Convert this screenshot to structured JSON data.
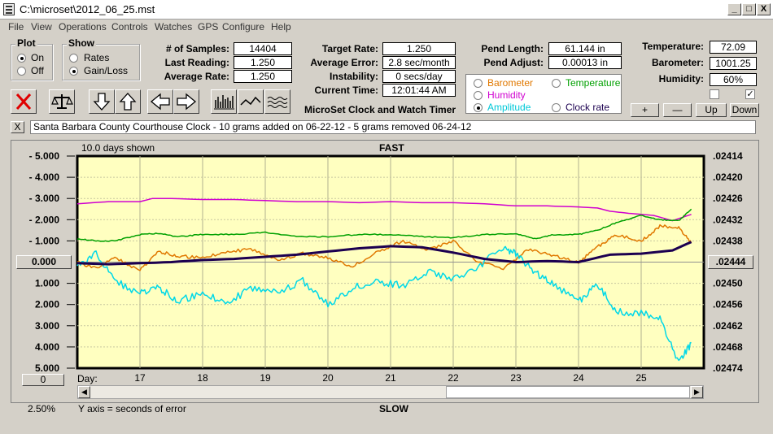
{
  "window": {
    "title": "C:\\microset\\2012_06_25.mst",
    "min": "_",
    "max": "□",
    "close": "X"
  },
  "menu": [
    "File",
    "View",
    "Operations",
    "Controls",
    "Watches",
    "GPS",
    "Configure",
    "Help"
  ],
  "plot": {
    "title": "Plot",
    "on": "On",
    "off": "Off",
    "selected": "On"
  },
  "show": {
    "title": "Show",
    "rates": "Rates",
    "gainloss": "Gain/Loss",
    "selected": "Gain/Loss"
  },
  "stats": {
    "samples_label": "# of Samples:",
    "samples": "14404",
    "last_label": "Last Reading:",
    "last": "1.250",
    "avg_rate_label": "Average Rate:",
    "avg_rate": "1.250",
    "target_label": "Target Rate:",
    "target": "1.250",
    "avg_err_label": "Average Error:",
    "avg_err": "2.8 sec/month",
    "instab_label": "Instability:",
    "instab": "0 secs/day",
    "time_label": "Current Time:",
    "time": "12:01:44 AM",
    "pend_len_label": "Pend Length:",
    "pend_len": "61.144 in",
    "pend_adj_label": "Pend Adjust:",
    "pend_adj": "0.00013 in",
    "temp_label": "Temperature:",
    "temp": "72.09",
    "baro_label": "Barometer:",
    "baro": "1001.25",
    "hum_label": "Humidity:",
    "hum": "60%"
  },
  "app_caption": "MicroSet Clock and Watch Timer",
  "legend": {
    "barometer": "Barometer",
    "temperature": "Temperature",
    "humidity": "Humidity",
    "amplitude": "Amplitude",
    "clockrate": "Clock rate",
    "selected": "Amplitude"
  },
  "colors": {
    "barometer": "#e07800",
    "temperature": "#00a000",
    "humidity": "#d000d0",
    "amplitude": "#00d8e8",
    "clockrate": "#1c0050",
    "plot_bg": "#ffffc0"
  },
  "scale_buttons": {
    "plus": "+",
    "minus": "—",
    "up": "Up",
    "down": "Down"
  },
  "checkboxes": {
    "left": "",
    "right": "✓"
  },
  "note": {
    "close": "X",
    "text": "Santa Barbara County Courthouse Clock - 10 grams added on 06-22-12 - 5 grams removed 06-24-12"
  },
  "chart_zero_left": "0.000",
  "chart_zero_right": ".02444",
  "chart_offset_btn": "0",
  "zoom_label": "2.50%",
  "toolbar_icons": [
    "close-x-icon",
    "balance-scale-icon",
    "arrow-down-icon",
    "arrow-up-icon",
    "arrow-left-icon",
    "arrow-right-icon",
    "bar-chart-icon",
    "line-wave-icon",
    "wave-noise-icon"
  ],
  "chart_data": {
    "type": "line",
    "days_shown": "10.0 days shown",
    "top_label": "FAST",
    "bottom_label": "SLOW",
    "ylabel": "Y axis = seconds of error",
    "xlabel": "Day:",
    "x_ticks": [
      "17",
      "18",
      "19",
      "20",
      "21",
      "22",
      "23",
      "24",
      "25"
    ],
    "x_range": [
      16.0,
      26.0
    ],
    "left_ticks": [
      "- 5.000",
      "- 4.000",
      "- 3.000",
      "- 2.000",
      "- 1.000",
      "1.000",
      "2.000",
      "3.000",
      "4.000",
      "5.000"
    ],
    "right_ticks": [
      ".02414",
      ".02420",
      ".02426",
      ".02432",
      ".02438",
      ".02450",
      ".02456",
      ".02462",
      ".02468",
      ".02474"
    ],
    "y_range": [
      -5,
      5
    ],
    "series": [
      {
        "name": "Humidity",
        "color": "#d000d0",
        "x": [
          16.0,
          16.5,
          17.0,
          17.2,
          17.5,
          18.0,
          18.5,
          19.0,
          19.5,
          20.0,
          20.5,
          21.0,
          21.5,
          22.0,
          22.5,
          23.0,
          23.5,
          24.0,
          24.3,
          24.5,
          24.8,
          25.0,
          25.2,
          25.5,
          25.8
        ],
        "y": [
          -2.75,
          -2.85,
          -2.85,
          -3.0,
          -3.0,
          -2.95,
          -2.95,
          -2.9,
          -2.85,
          -2.85,
          -2.8,
          -2.85,
          -2.8,
          -2.8,
          -2.75,
          -2.65,
          -2.65,
          -2.6,
          -2.55,
          -2.4,
          -2.3,
          -2.25,
          -2.2,
          -1.95,
          -2.25
        ]
      },
      {
        "name": "Temperature",
        "color": "#00a000",
        "x": [
          16.0,
          16.3,
          16.6,
          17.0,
          17.3,
          17.6,
          18.0,
          18.5,
          19.0,
          19.5,
          20.0,
          20.5,
          21.0,
          21.5,
          22.0,
          22.5,
          23.0,
          23.3,
          23.6,
          24.0,
          24.3,
          24.6,
          25.0,
          25.3,
          25.6,
          25.8
        ],
        "y": [
          -1.1,
          -1.0,
          -1.0,
          -1.3,
          -1.35,
          -1.2,
          -1.3,
          -1.3,
          -1.4,
          -1.2,
          -1.2,
          -1.3,
          -1.3,
          -1.2,
          -1.15,
          -1.3,
          -1.35,
          -1.1,
          -1.3,
          -1.3,
          -1.5,
          -1.85,
          -2.2,
          -2.0,
          -1.95,
          -2.5
        ]
      },
      {
        "name": "Barometer",
        "color": "#e07800",
        "x": [
          16.0,
          16.3,
          16.6,
          17.0,
          17.3,
          17.6,
          18.0,
          18.4,
          18.8,
          19.2,
          19.6,
          20.0,
          20.4,
          20.8,
          21.2,
          21.6,
          22.0,
          22.4,
          22.8,
          23.2,
          23.6,
          24.0,
          24.3,
          24.6,
          25.0,
          25.3,
          25.6,
          25.8
        ],
        "y": [
          0.0,
          0.3,
          -0.2,
          0.4,
          -0.5,
          -0.3,
          -0.2,
          -0.5,
          -0.6,
          -0.1,
          -0.4,
          -0.2,
          0.2,
          -0.5,
          -1.0,
          -0.6,
          -1.0,
          0.0,
          0.3,
          -0.6,
          -0.3,
          0.0,
          -0.7,
          -1.3,
          -1.0,
          -1.7,
          -1.6,
          -0.9
        ]
      },
      {
        "name": "Amplitude",
        "color": "#00d8e8",
        "x": [
          16.0,
          16.3,
          16.6,
          17.0,
          17.3,
          17.6,
          18.0,
          18.4,
          18.8,
          19.2,
          19.6,
          20.0,
          20.4,
          20.8,
          21.2,
          21.6,
          22.0,
          22.4,
          22.8,
          23.0,
          23.3,
          23.6,
          24.0,
          24.3,
          24.6,
          25.0,
          25.3,
          25.6,
          25.8
        ],
        "y": [
          0.2,
          -0.4,
          0.9,
          1.5,
          1.2,
          1.8,
          1.5,
          1.9,
          1.2,
          1.4,
          0.9,
          2.0,
          1.2,
          0.9,
          1.1,
          0.4,
          0.8,
          0.2,
          -0.7,
          -0.4,
          0.5,
          1.0,
          1.9,
          1.0,
          2.3,
          2.4,
          2.7,
          4.8,
          3.8
        ]
      },
      {
        "name": "Clock rate",
        "color": "#1c0050",
        "x": [
          16.0,
          16.5,
          17.0,
          17.5,
          18.0,
          18.5,
          19.0,
          19.5,
          20.0,
          20.5,
          21.0,
          21.5,
          22.0,
          22.5,
          23.0,
          23.5,
          24.0,
          24.5,
          25.0,
          25.5,
          25.8
        ],
        "y": [
          0.05,
          0.1,
          0.05,
          0.0,
          -0.1,
          -0.15,
          -0.25,
          -0.35,
          -0.5,
          -0.65,
          -0.75,
          -0.7,
          -0.45,
          -0.15,
          0.0,
          -0.05,
          0.0,
          -0.35,
          -0.4,
          -0.55,
          -0.95
        ]
      }
    ]
  }
}
